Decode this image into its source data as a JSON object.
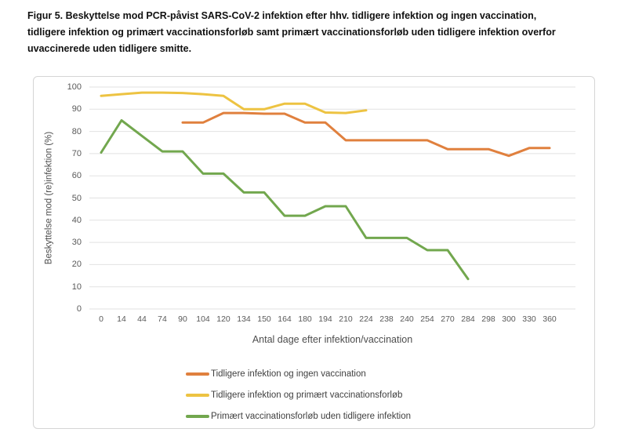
{
  "figure": {
    "title_lines": [
      "Figur 5. Beskyttelse mod PCR-påvist SARS-CoV-2 infektion efter hhv. tidligere infektion og ingen vaccination,",
      "tidligere infektion og primært vaccinationsforløb samt primært vaccinationsforløb uden tidligere infektion overfor",
      "uvaccinerede uden tidligere smitte."
    ]
  },
  "chart_data": {
    "type": "line",
    "title": "",
    "xlabel": "Antal dage efter infektion/vaccination",
    "ylabel": "Beskyttelse mod (re)infektion (%)",
    "ylim": [
      0,
      100
    ],
    "ytick_step": 10,
    "grid": true,
    "legend_position": "bottom",
    "categories": [
      0,
      14,
      44,
      74,
      90,
      104,
      120,
      134,
      150,
      164,
      180,
      194,
      210,
      224,
      238,
      240,
      254,
      270,
      284,
      298,
      300,
      330,
      360
    ],
    "series": [
      {
        "name": "Tidligere infektion og ingen vaccination",
        "color": "#E0803E",
        "values": [
          null,
          null,
          null,
          null,
          84,
          84,
          88.3,
          88.3,
          88,
          88,
          84,
          84,
          76,
          76,
          76,
          76,
          76,
          72,
          72,
          72,
          69,
          72.5,
          72.5
        ]
      },
      {
        "name": "Tidligere infektion og primært vaccinationsforløb",
        "color": "#EDC342",
        "values": [
          96,
          96.8,
          97.5,
          97.5,
          97.3,
          96.8,
          96,
          90,
          90,
          92.5,
          92.5,
          88.5,
          88.3,
          89.5,
          null,
          null,
          null,
          null,
          null,
          null,
          null,
          null,
          null
        ]
      },
      {
        "name": "Primært vaccinationsforløb uden tidligere infektion",
        "color": "#72A74E",
        "values": [
          70.5,
          85,
          78,
          71,
          71,
          61,
          61,
          52.5,
          52.5,
          42,
          42,
          46.3,
          46.3,
          32,
          32,
          32,
          26.5,
          26.5,
          13.5,
          null,
          null,
          null,
          null
        ]
      }
    ]
  },
  "colors": {
    "gridline": "#E2E2E2",
    "chart_border": "#D5D5D5",
    "axis_text": "#595959",
    "title_text": "#111111",
    "legend_text": "#404040"
  }
}
